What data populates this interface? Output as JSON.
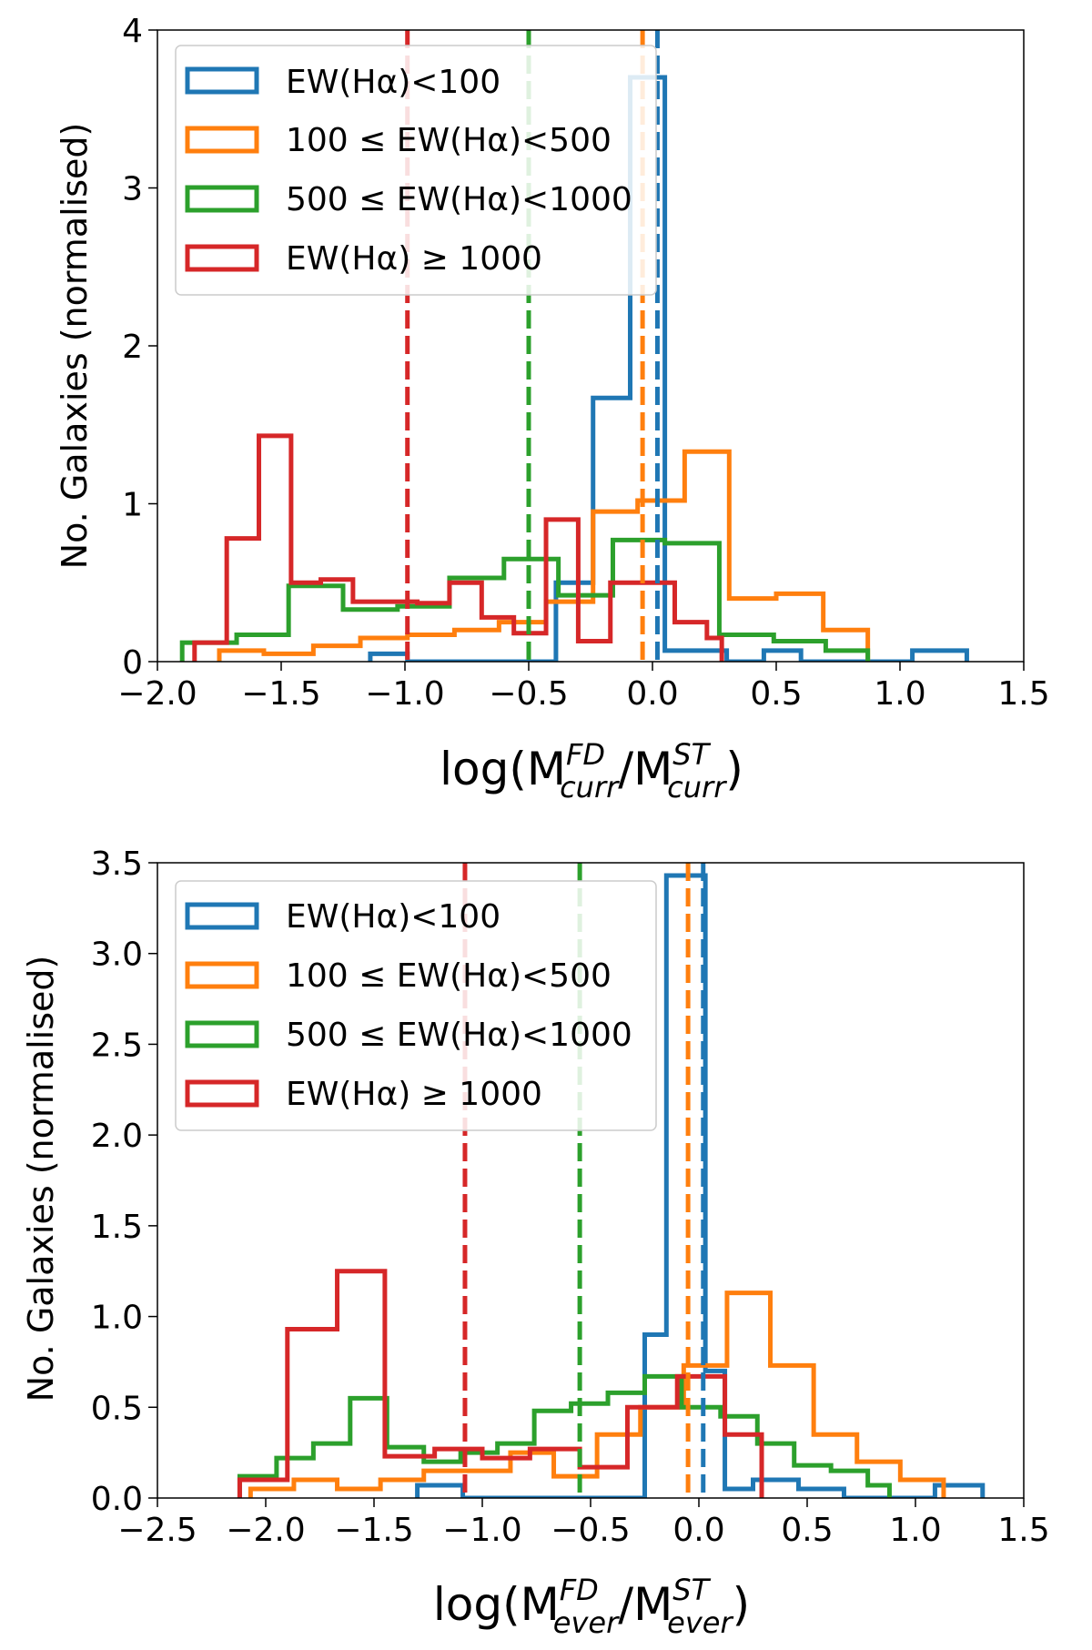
{
  "colors": {
    "blue": "#1f77b4",
    "orange": "#ff7f0e",
    "green": "#2ca02c",
    "red": "#d62728"
  },
  "chart_data": [
    {
      "type": "histogram",
      "panel": "top",
      "ylabel": "No. Galaxies (normalised)",
      "xlabel": {
        "base": "log(M",
        "sup1": "FD",
        "sub1": "curr",
        "mid": "/M",
        "sup2": "ST",
        "sub2": "curr",
        "end": ")"
      },
      "xlim": [
        -2.0,
        1.5
      ],
      "ylim": [
        0,
        4
      ],
      "xticks": [
        -2.0,
        -1.5,
        -1.0,
        -0.5,
        0.0,
        0.5,
        1.0,
        1.5
      ],
      "xtick_labels": [
        "−2.0",
        "−1.5",
        "−1.0",
        "−0.5",
        "0.0",
        "0.5",
        "1.0",
        "1.5"
      ],
      "yticks": [
        0,
        1,
        2,
        3,
        4
      ],
      "ytick_labels": [
        "0",
        "1",
        "2",
        "3",
        "4"
      ],
      "legend": {
        "position": "upper-left",
        "labels": [
          "EW(Hα)<100",
          "100 ≤ EW(Hα)<500",
          "500 ≤ EW(Hα)<1000",
          "EW(Hα) ≥ 1000"
        ]
      },
      "series": [
        {
          "name": "EW(Hα)<100",
          "color": "blue",
          "edges": [
            -1.14,
            -0.99,
            -0.84,
            -0.69,
            -0.54,
            -0.39,
            -0.24,
            -0.09,
            0.05,
            0.16,
            0.3,
            0.45,
            0.6,
            0.75,
            0.9,
            1.05,
            1.27
          ],
          "values": [
            0.05,
            0.0,
            0.0,
            0.0,
            0.0,
            0.5,
            1.67,
            3.7,
            0.07,
            0.07,
            0.0,
            0.07,
            0.0,
            0.0,
            0.0,
            0.07
          ],
          "median": 0.02
        },
        {
          "name": "100 ≤ EW(Hα)<500",
          "color": "orange",
          "edges": [
            -1.75,
            -1.57,
            -1.37,
            -1.18,
            -0.99,
            -0.8,
            -0.62,
            -0.43,
            -0.24,
            -0.06,
            0.13,
            0.31,
            0.5,
            0.69,
            0.87
          ],
          "values": [
            0.07,
            0.05,
            0.1,
            0.15,
            0.17,
            0.2,
            0.25,
            0.38,
            0.95,
            1.02,
            1.33,
            0.4,
            0.43,
            0.2
          ],
          "median": -0.04
        },
        {
          "name": "500 ≤ EW(Hα)<1000",
          "color": "green",
          "edges": [
            -1.9,
            -1.68,
            -1.47,
            -1.25,
            -1.03,
            -0.82,
            -0.6,
            -0.38,
            -0.16,
            0.05,
            0.27,
            0.49,
            0.7,
            0.87
          ],
          "values": [
            0.12,
            0.17,
            0.48,
            0.33,
            0.35,
            0.53,
            0.65,
            0.42,
            0.77,
            0.75,
            0.17,
            0.13,
            0.07
          ],
          "median": -0.5
        },
        {
          "name": "EW(Hα) ≥ 1000",
          "color": "red",
          "edges": [
            -1.85,
            -1.72,
            -1.59,
            -1.46,
            -1.34,
            -1.21,
            -1.08,
            -0.95,
            -0.82,
            -0.69,
            -0.56,
            -0.43,
            -0.3,
            -0.17,
            -0.04,
            0.09,
            0.22,
            0.28
          ],
          "values": [
            0.12,
            0.78,
            1.43,
            0.5,
            0.52,
            0.38,
            0.38,
            0.37,
            0.5,
            0.28,
            0.18,
            0.9,
            0.13,
            0.5,
            0.5,
            0.25,
            0.15
          ],
          "median": -0.99
        }
      ]
    },
    {
      "type": "histogram",
      "panel": "bottom",
      "ylabel": "No. Galaxies (normalised)",
      "xlabel": {
        "base": "log(M",
        "sup1": "FD",
        "sub1": "ever",
        "mid": "/M",
        "sup2": "ST",
        "sub2": "ever",
        "end": ")"
      },
      "xlim": [
        -2.5,
        1.5
      ],
      "ylim": [
        0,
        3.5
      ],
      "xticks": [
        -2.5,
        -2.0,
        -1.5,
        -1.0,
        -0.5,
        0.0,
        0.5,
        1.0,
        1.5
      ],
      "xtick_labels": [
        "−2.5",
        "−2.0",
        "−1.5",
        "−1.0",
        "−0.5",
        "0.0",
        "0.5",
        "1.0",
        "1.5"
      ],
      "yticks": [
        0,
        0.5,
        1.0,
        1.5,
        2.0,
        2.5,
        3.0,
        3.5
      ],
      "ytick_labels": [
        "0.0",
        "0.5",
        "1.0",
        "1.5",
        "2.0",
        "2.5",
        "3.0",
        "3.5"
      ],
      "legend": {
        "position": "upper-left",
        "labels": [
          "EW(Hα)<100",
          "100 ≤ EW(Hα)<500",
          "500 ≤ EW(Hα)<1000",
          "EW(Hα) ≥ 1000"
        ]
      },
      "series": [
        {
          "name": "EW(Hα)<100",
          "color": "blue",
          "edges": [
            -1.3,
            -1.09,
            -0.88,
            -0.67,
            -0.46,
            -0.25,
            -0.15,
            -0.08,
            0.03,
            0.12,
            0.25,
            0.46,
            0.67,
            0.88,
            1.09,
            1.31
          ],
          "values": [
            0.07,
            0.0,
            0.0,
            0.0,
            0.0,
            0.9,
            3.43,
            3.43,
            0.7,
            0.05,
            0.1,
            0.05,
            0.0,
            0.0,
            0.07
          ],
          "median": 0.02
        },
        {
          "name": "100 ≤ EW(Hα)<500",
          "color": "orange",
          "edges": [
            -2.07,
            -1.87,
            -1.67,
            -1.47,
            -1.27,
            -1.07,
            -0.87,
            -0.67,
            -0.47,
            -0.27,
            -0.07,
            0.13,
            0.33,
            0.53,
            0.73,
            0.93,
            1.13
          ],
          "values": [
            0.05,
            0.1,
            0.05,
            0.1,
            0.15,
            0.15,
            0.25,
            0.12,
            0.35,
            0.5,
            0.73,
            1.13,
            0.73,
            0.35,
            0.2,
            0.1
          ],
          "median": -0.05
        },
        {
          "name": "500 ≤ EW(Hα)<1000",
          "color": "green",
          "edges": [
            -2.12,
            -1.95,
            -1.78,
            -1.61,
            -1.44,
            -1.27,
            -1.1,
            -0.93,
            -0.76,
            -0.59,
            -0.42,
            -0.25,
            -0.08,
            0.1,
            0.27,
            0.44,
            0.61,
            0.78,
            0.88
          ],
          "values": [
            0.12,
            0.22,
            0.3,
            0.55,
            0.28,
            0.2,
            0.25,
            0.3,
            0.48,
            0.52,
            0.58,
            0.67,
            0.5,
            0.45,
            0.3,
            0.18,
            0.15,
            0.07
          ],
          "median": -0.55
        },
        {
          "name": "EW(Hα) ≥ 1000",
          "color": "red",
          "edges": [
            -2.12,
            -1.9,
            -1.67,
            -1.45,
            -1.22,
            -1.0,
            -0.78,
            -0.55,
            -0.33,
            -0.1,
            0.12,
            0.29
          ],
          "values": [
            0.1,
            0.93,
            1.25,
            0.23,
            0.27,
            0.22,
            0.27,
            0.17,
            0.5,
            0.67,
            0.35,
            0.0
          ],
          "median": -1.08
        }
      ]
    }
  ]
}
